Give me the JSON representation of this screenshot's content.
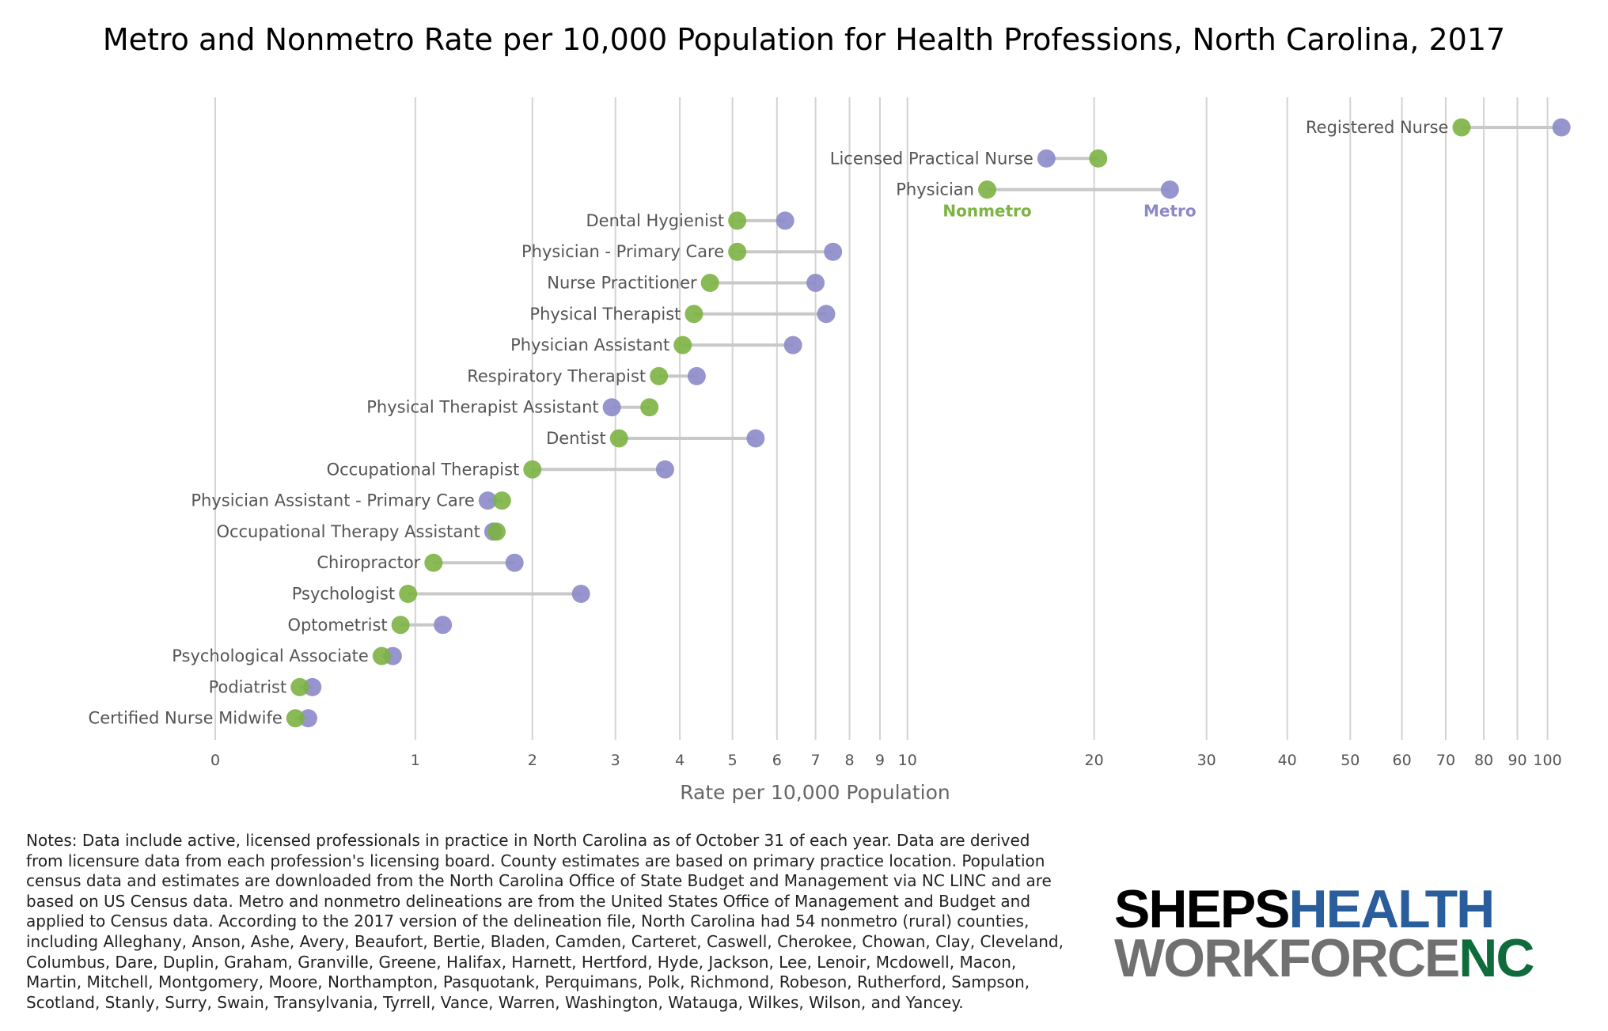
{
  "chart_data": {
    "type": "dumbbell",
    "title": "Metro and Nonmetro Rate per 10,000 Population for Health Professions, North Carolina, 2017",
    "xlabel": "Rate per 10,000 Population",
    "x_scale": "log(1+x)",
    "xlim": [
      0,
      110
    ],
    "x_ticks": [
      0,
      1,
      2,
      3,
      4,
      5,
      6,
      7,
      8,
      9,
      10,
      20,
      30,
      40,
      50,
      60,
      70,
      80,
      90,
      100
    ],
    "grid": true,
    "colors": {
      "metro": "#8c89c9",
      "nonmetro": "#7cb342"
    },
    "annotations": [
      {
        "text": "Nonmetro",
        "series": "nonmetro",
        "category": "Physician"
      },
      {
        "text": "Metro",
        "series": "metro",
        "category": "Physician"
      }
    ],
    "categories": [
      "Registered Nurse",
      "Licensed Practical Nurse",
      "Physician",
      "Dental Hygienist",
      "Physician - Primary Care",
      "Nurse Practitioner",
      "Physical Therapist",
      "Physician Assistant",
      "Respiratory Therapist",
      "Physical Therapist Assistant",
      "Dentist",
      "Occupational Therapist",
      "Physician Assistant - Primary Care",
      "Occupational Therapy Assistant",
      "Chiropractor",
      "Psychologist",
      "Optometrist",
      "Psychological Associate",
      "Podiatrist",
      "Certified Nurse Midwife"
    ],
    "series": [
      {
        "name": "Metro",
        "values": [
          105,
          16.8,
          26.3,
          6.2,
          7.5,
          7.0,
          7.3,
          6.4,
          4.3,
          2.95,
          5.5,
          3.75,
          1.57,
          1.62,
          1.82,
          2.55,
          1.2,
          0.85,
          0.4,
          0.38
        ]
      },
      {
        "name": "Nonmetro",
        "values": [
          74,
          20.3,
          13.5,
          5.1,
          5.1,
          4.55,
          4.25,
          4.05,
          3.65,
          3.5,
          3.05,
          2.0,
          1.7,
          1.65,
          1.13,
          0.95,
          0.9,
          0.78,
          0.34,
          0.32
        ]
      }
    ]
  },
  "notes": "Notes: Data include active, licensed professionals in practice in North Carolina as of October 31 of each year. Data are derived from licensure data from each profession's licensing board. County estimates are based on primary practice location. Population census data and estimates are downloaded from the North Carolina Office of State Budget and Management via NC LINC and are based on US Census data. Metro and nonmetro delineations are from the United States Office of Management and Budget and applied to Census data. According to the 2017 version of the delineation file, North Carolina had 54 nonmetro (rural) counties, including Alleghany, Anson, Ashe, Avery, Beaufort, Bertie, Bladen, Camden, Carteret, Caswell, Cherokee, Chowan, Clay, Cleveland, Columbus, Dare, Duplin, Graham, Granville, Greene, Halifax, Harnett, Hertford, Hyde, Jackson, Lee, Lenoir, Mcdowell, Macon, Martin, Mitchell, Montgomery, Moore, Northampton, Pasquotank, Perquimans, Polk, Richmond, Robeson, Rutherford, Sampson, Scotland, Stanly, Surry, Swain, Transylvania, Tyrrell, Vance, Warren, Washington, Watauga, Wilkes, Wilson, and Yancey.",
  "logo": {
    "line1_a": "SHEPS",
    "line1_b": "HEALTH",
    "line2_a": "WORKFORCE",
    "line2_b": "NC"
  }
}
